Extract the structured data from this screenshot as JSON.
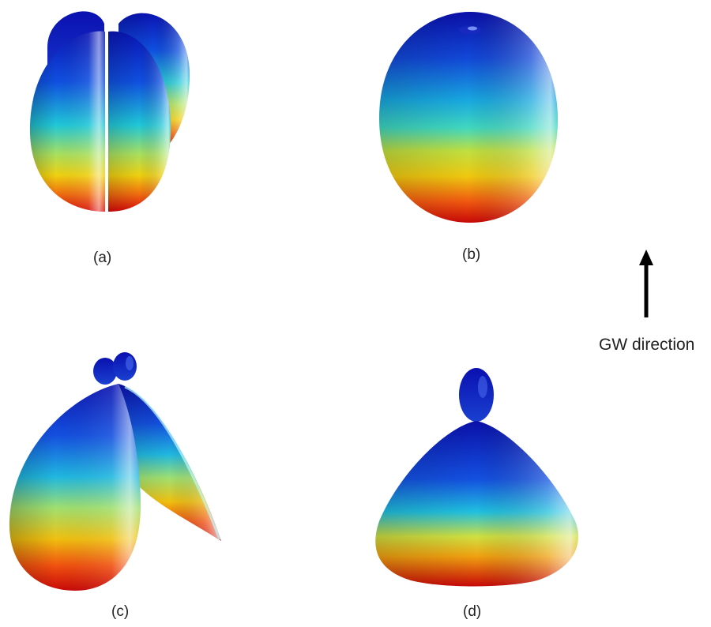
{
  "panels": {
    "a": {
      "label": "(a)"
    },
    "b": {
      "label": "(b)"
    },
    "c": {
      "label": "(c)"
    },
    "d": {
      "label": "(d)"
    }
  },
  "arrow": {
    "label": "GW direction"
  },
  "colors": {
    "low": "#cc0000",
    "mid_low": "#ffcc00",
    "mid": "#33dddd",
    "high": "#0020cc",
    "arrow": "#000000"
  },
  "colormap_icon": "jet-gradient"
}
